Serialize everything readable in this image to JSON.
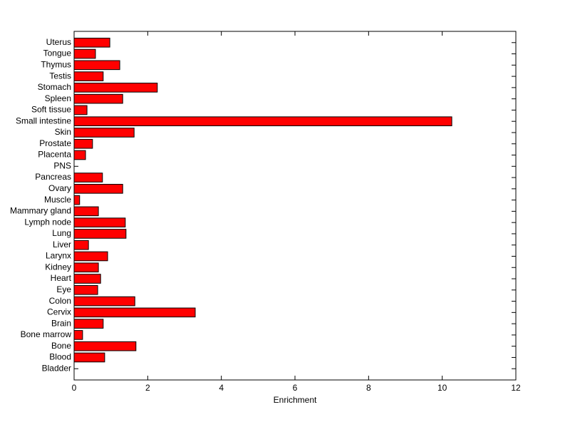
{
  "chart_data": {
    "type": "barh",
    "xlabel": "Enrichment",
    "categories": [
      "Bladder",
      "Blood",
      "Bone",
      "Bone marrow",
      "Brain",
      "Cervix",
      "Colon",
      "Eye",
      "Heart",
      "Kidney",
      "Larynx",
      "Liver",
      "Lung",
      "Lymph node",
      "Mammary gland",
      "Muscle",
      "Ovary",
      "Pancreas",
      "PNS",
      "Placenta",
      "Prostate",
      "Skin",
      "Small intestine",
      "Soft tissue",
      "Spleen",
      "Stomach",
      "Testis",
      "Thymus",
      "Tongue",
      "Uterus"
    ],
    "values": [
      0,
      0.83,
      1.68,
      0.23,
      0.79,
      3.29,
      1.65,
      0.64,
      0.72,
      0.66,
      0.91,
      0.39,
      1.41,
      1.39,
      0.66,
      0.15,
      1.32,
      0.77,
      0,
      0.31,
      0.5,
      1.63,
      10.26,
      0.35,
      1.32,
      2.26,
      0.79,
      1.24,
      0.58,
      0.97
    ],
    "color": "#ff0000",
    "xlim": [
      0,
      12
    ],
    "xticks": [
      0,
      2,
      4,
      6,
      8,
      10,
      12
    ],
    "grid": false
  }
}
